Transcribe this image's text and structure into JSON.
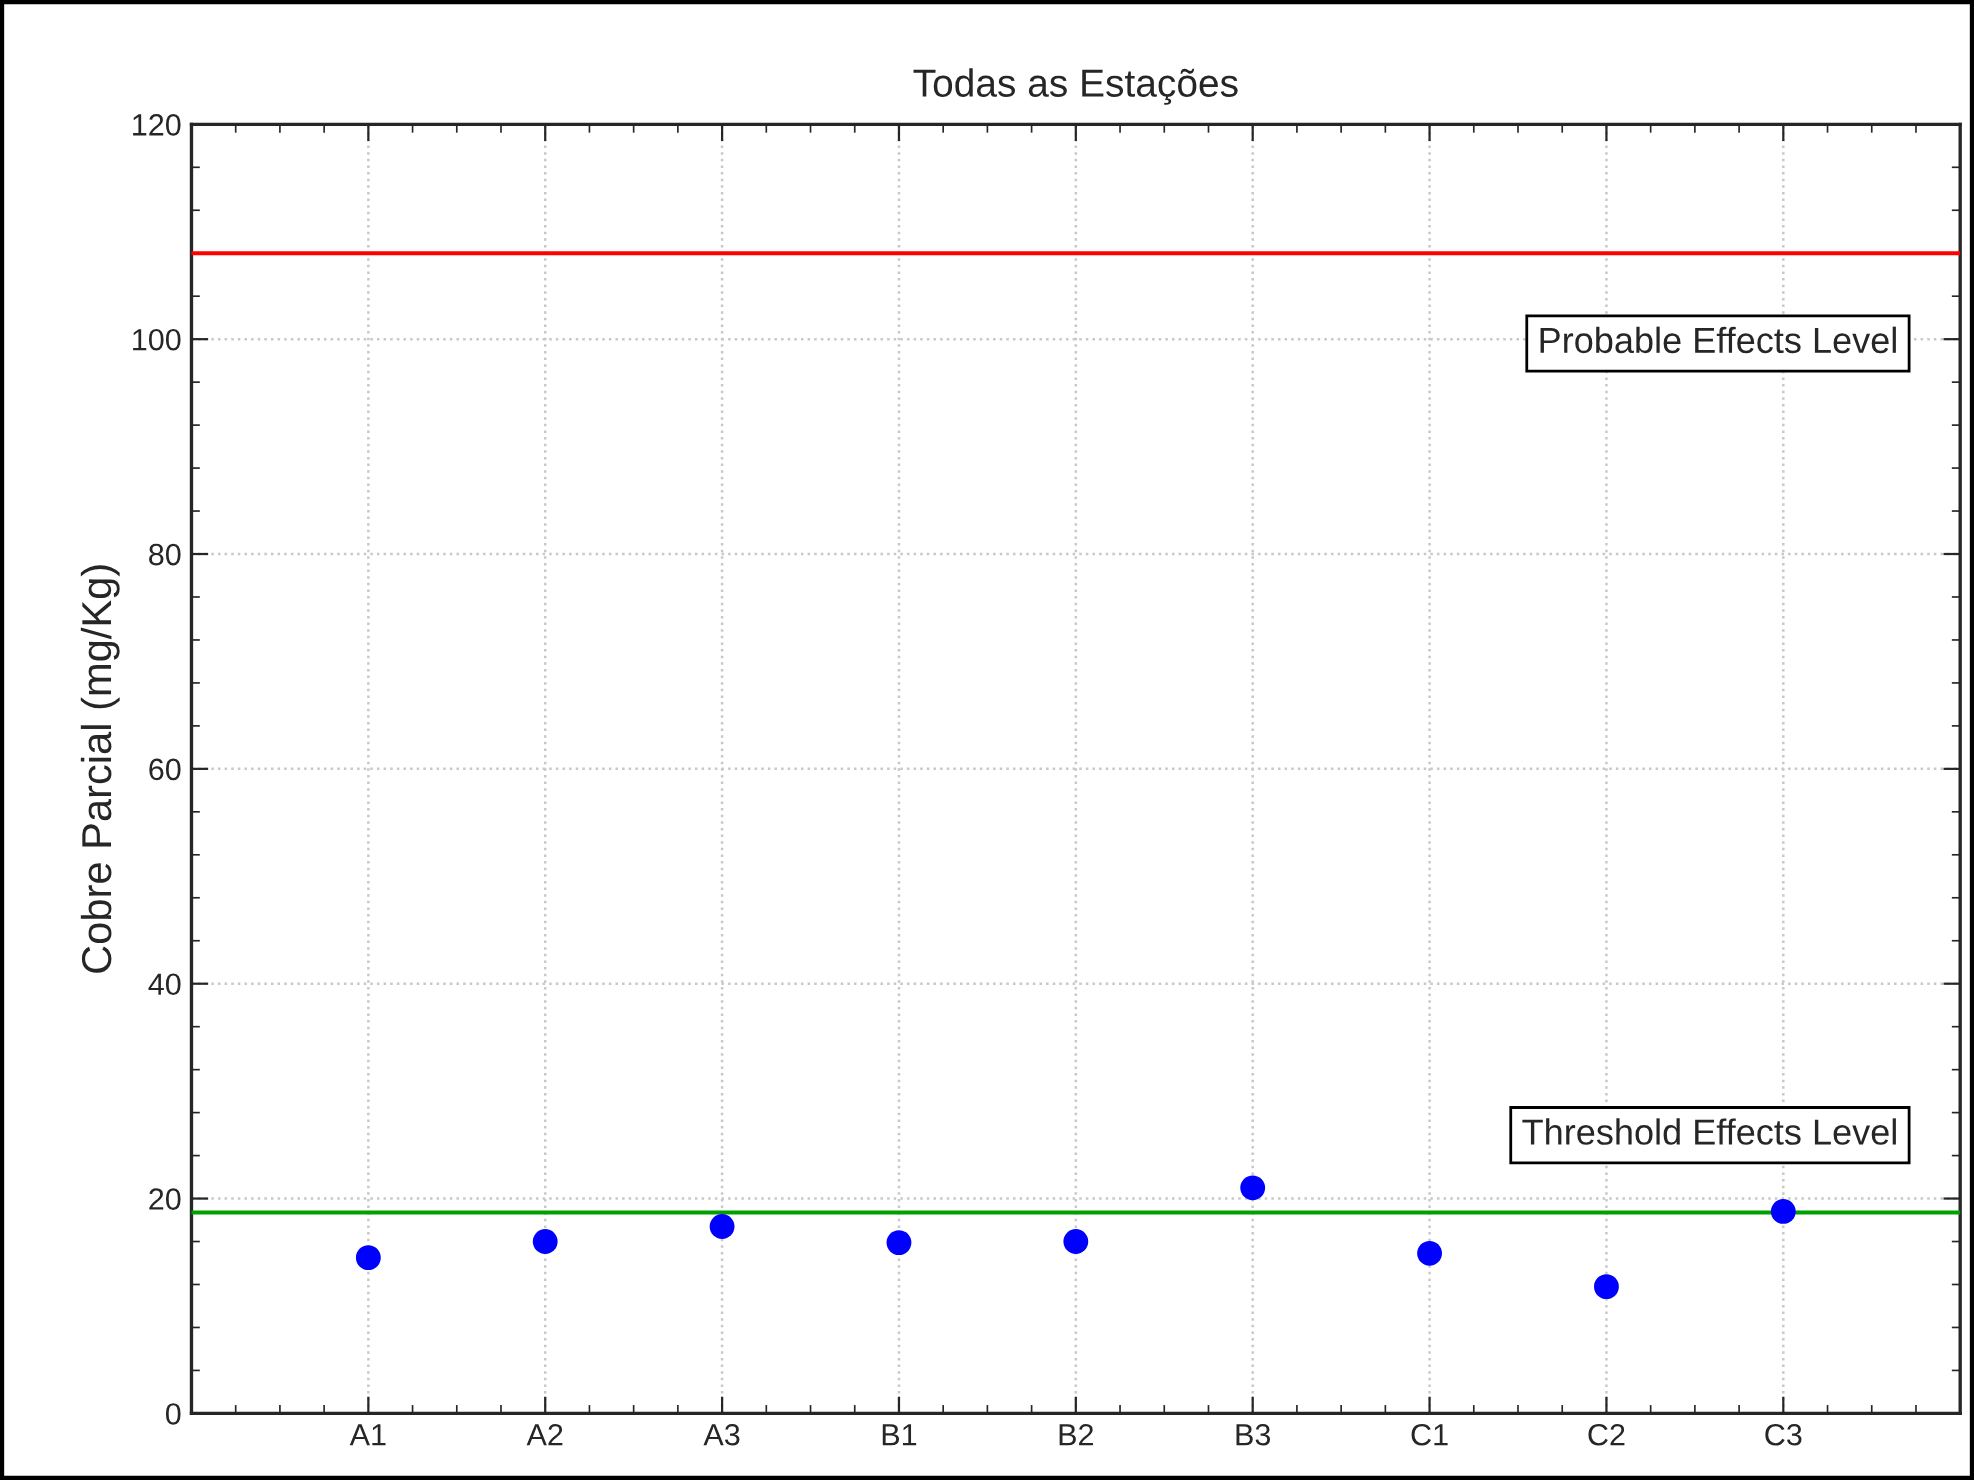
{
  "chart_data": {
    "type": "scatter",
    "title": "Todas as Estações",
    "ylabel": "Cobre Parcial (mg/Kg)",
    "categories": [
      "A1",
      "A2",
      "A3",
      "B1",
      "B2",
      "B3",
      "C1",
      "C2",
      "C3"
    ],
    "series": [
      {
        "color": "#0000ff",
        "values": [
          14.5,
          16.0,
          17.4,
          15.9,
          16.0,
          21.0,
          14.9,
          11.8,
          18.8
        ]
      }
    ],
    "ylim": [
      0,
      120
    ],
    "yticks": [
      0,
      20,
      40,
      60,
      80,
      100,
      120
    ],
    "grid": true,
    "marker": "circle",
    "ref_lines": [
      {
        "axis": "y",
        "value": 108,
        "label": "Probable Effects Level",
        "color": "#ff0000"
      },
      {
        "axis": "y",
        "value": 18.7,
        "label": "Threshold Effects Level",
        "color": "#00a000"
      }
    ]
  }
}
